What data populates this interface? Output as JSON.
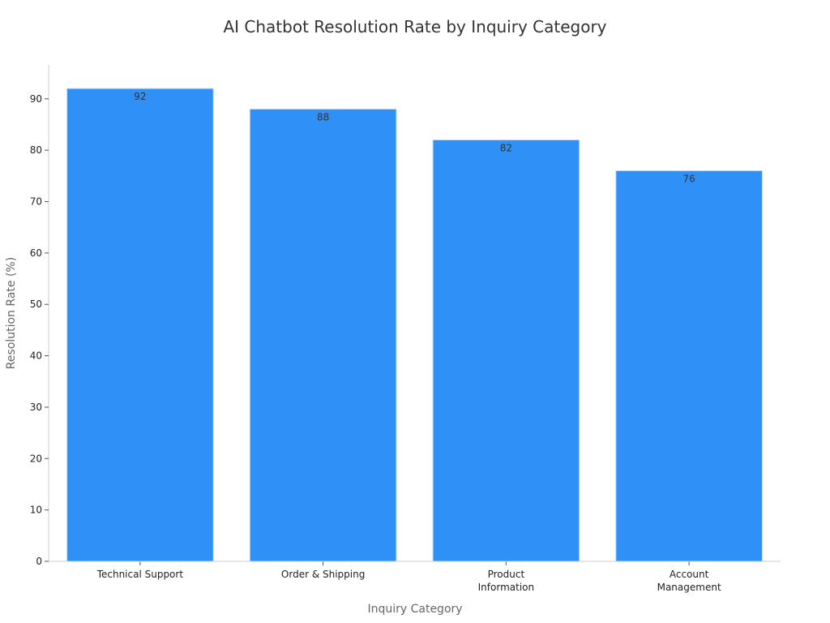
{
  "chart_data": {
    "type": "bar",
    "title": "AI Chatbot Resolution Rate by Inquiry Category",
    "xlabel": "Inquiry Category",
    "ylabel": "Resolution Rate (%)",
    "categories": [
      [
        "Technical Support"
      ],
      [
        "Order & Shipping"
      ],
      [
        "Product",
        "Information"
      ],
      [
        "Account",
        "Management"
      ]
    ],
    "values": [
      92,
      88,
      82,
      76
    ],
    "ylim": [
      0,
      96.6
    ],
    "yticks": [
      0,
      10,
      20,
      30,
      40,
      50,
      60,
      70,
      80,
      90
    ],
    "grid": false,
    "legend": "none",
    "bar_color": "#2f91f8",
    "bar_edge_color": "#b9d9fb"
  }
}
